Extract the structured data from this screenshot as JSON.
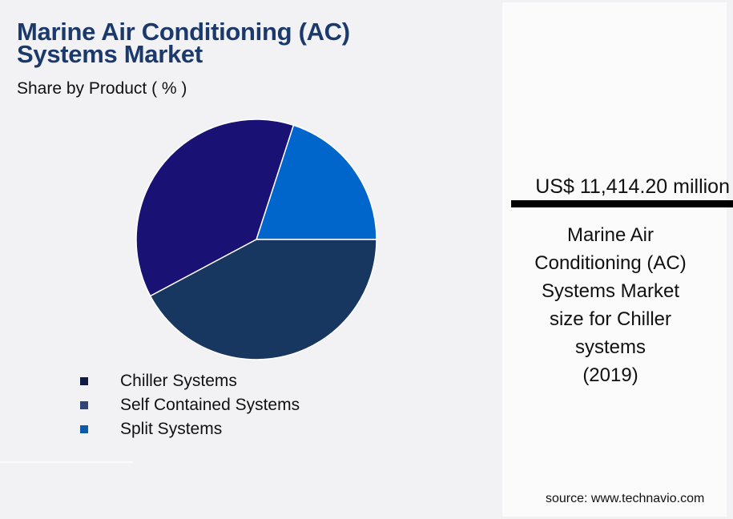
{
  "header": {
    "title_line1": "Marine Air Conditioning (AC)",
    "title_line2": "Systems Market",
    "subtitle": "Share by Product ( % )"
  },
  "chart_data": {
    "type": "pie",
    "title": "Marine Air Conditioning (AC) Systems Market",
    "subtitle": "Share by Product ( % )",
    "categories": [
      "Chiller Systems",
      "Self Contained Systems",
      "Split Systems"
    ],
    "values": [
      37.8,
      42.2,
      20.0
    ],
    "slice_colors": [
      "#1a1175",
      "#173760",
      "#0066cc"
    ],
    "legend_colors": [
      "#0f1b45",
      "#2f4577",
      "#0d5aa7"
    ],
    "start_angle_deg": 0,
    "direction": "counterclockwise_from_split",
    "legend_position": "bottom-left"
  },
  "legend": {
    "items": [
      {
        "label": "Chiller Systems",
        "color": "#0f1b45"
      },
      {
        "label": "Self Contained Systems",
        "color": "#2f4577"
      },
      {
        "label": "Split Systems",
        "color": "#0d5aa7"
      }
    ]
  },
  "side_panel": {
    "value": "US$ 11,414.20 million",
    "desc_lines": [
      "Marine Air",
      "Conditioning (AC)",
      "Systems Market",
      "size for Chiller",
      "systems",
      "(2019)"
    ],
    "source": "source: www.technavio.com"
  }
}
